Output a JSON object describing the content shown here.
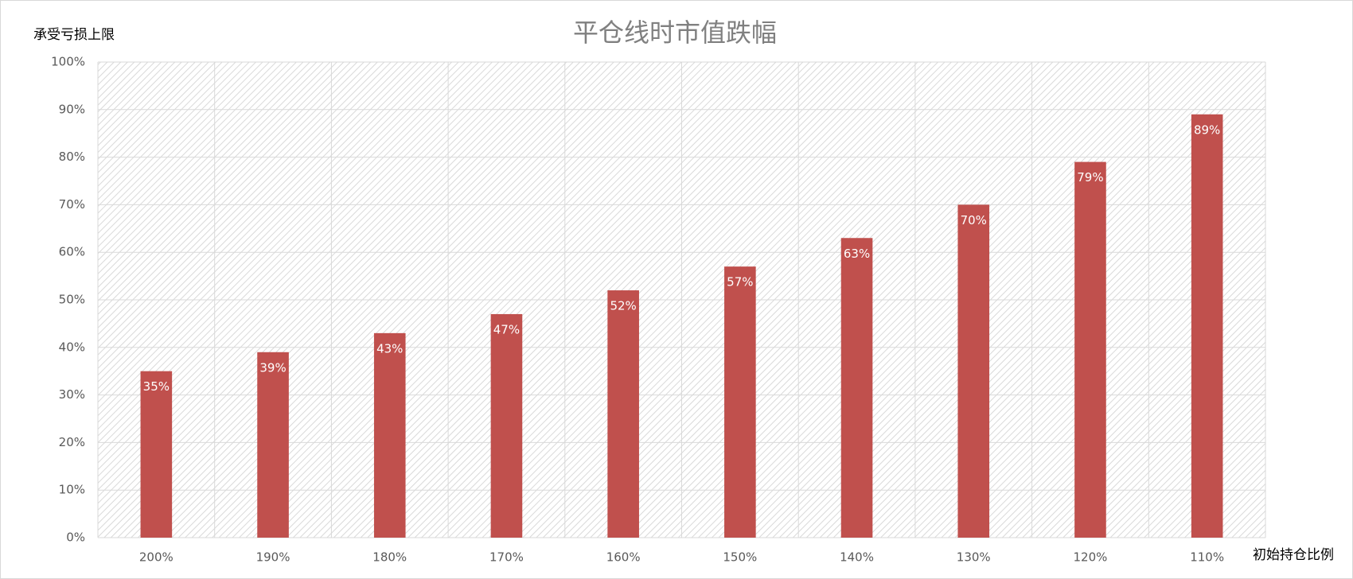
{
  "chart_data": {
    "type": "bar",
    "title": "平仓线时市值跌幅",
    "y_label": "承受亏损上限",
    "x_label": "初始持仓比例",
    "categories": [
      "200%",
      "190%",
      "180%",
      "170%",
      "160%",
      "150%",
      "140%",
      "130%",
      "120%",
      "110%"
    ],
    "values": [
      35,
      39,
      43,
      47,
      52,
      57,
      63,
      70,
      79,
      89
    ],
    "value_labels": [
      "35%",
      "39%",
      "43%",
      "47%",
      "52%",
      "57%",
      "63%",
      "70%",
      "79%",
      "89%"
    ],
    "color": "#c0504d",
    "ylim": [
      0,
      100
    ],
    "yticks": [
      {
        "value": 0,
        "label": "0%"
      },
      {
        "value": 10,
        "label": "10%"
      },
      {
        "value": 20,
        "label": "20%"
      },
      {
        "value": 30,
        "label": "30%"
      },
      {
        "value": 40,
        "label": "40%"
      },
      {
        "value": 50,
        "label": "50%"
      },
      {
        "value": 60,
        "label": "60%"
      },
      {
        "value": 70,
        "label": "70%"
      },
      {
        "value": 80,
        "label": "80%"
      },
      {
        "value": 90,
        "label": "90%"
      },
      {
        "value": 100,
        "label": "100%"
      }
    ],
    "grid": true
  }
}
